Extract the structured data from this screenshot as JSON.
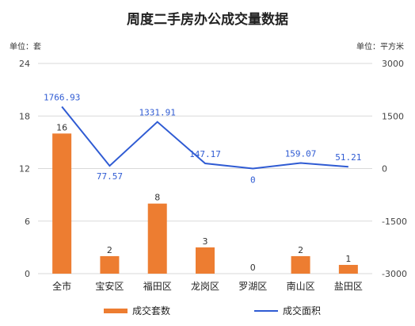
{
  "chart_data": {
    "type": "bar",
    "title": "周度二手房办公成交量数据",
    "ylabel_left": "单位：套",
    "ylabel_right": "单位：平方米",
    "categories": [
      "全市",
      "宝安区",
      "福田区",
      "龙岗区",
      "罗湖区",
      "南山区",
      "盐田区"
    ],
    "ylim_left": [
      0,
      24
    ],
    "yticks_left": [
      0,
      6,
      12,
      18,
      24
    ],
    "ylim_right": [
      -3000,
      3000
    ],
    "yticks_right": [
      -3000,
      -1500,
      0,
      1500,
      3000
    ],
    "grid": true,
    "legend_position": "bottom",
    "series": [
      {
        "name": "成交套数",
        "type": "bar",
        "axis": "left",
        "color": "#ed7d31",
        "values": [
          16,
          2,
          8,
          3,
          0,
          2,
          1
        ],
        "labels": [
          "16",
          "2",
          "8",
          "3",
          "0",
          "2",
          "1"
        ]
      },
      {
        "name": "成交面积",
        "type": "line",
        "axis": "right",
        "color": "#2f5bd3",
        "values": [
          1766.93,
          77.57,
          1331.91,
          147.17,
          0,
          159.07,
          51.21
        ],
        "labels": [
          "1766.93",
          "77.57",
          "1331.91",
          "147.17",
          "0",
          "159.07",
          "51.21"
        ]
      }
    ]
  }
}
